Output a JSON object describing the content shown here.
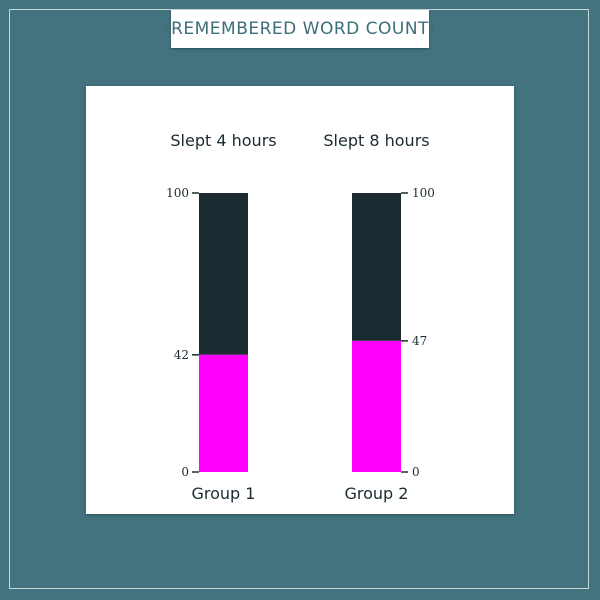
{
  "title": "(REMEMBERED WORD COUNT)",
  "chart_data": {
    "type": "bar",
    "ylim": [
      0,
      100
    ],
    "bars": [
      {
        "top_label": "Slept 4 hours",
        "bottom_label": "Group 1",
        "value": 42,
        "ticks": [
          "100",
          "42",
          "0"
        ],
        "axis_side": "left"
      },
      {
        "top_label": "Slept 8 hours",
        "bottom_label": "Group 2",
        "value": 47,
        "ticks": [
          "100",
          "47",
          "0"
        ],
        "axis_side": "right"
      }
    ],
    "colors": {
      "filled": "#ff00ff",
      "remaining": "#1b2b31"
    }
  }
}
